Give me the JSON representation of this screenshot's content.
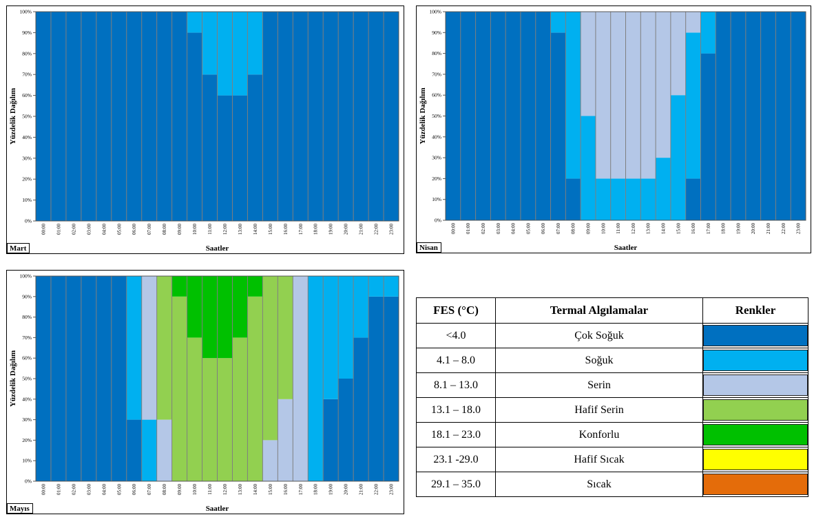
{
  "colors": {
    "cok_soguk": "#0070c0",
    "soguk": "#00b0f0",
    "serin": "#b4c7e7",
    "hafif_serin": "#92d050",
    "konforlu": "#00c000",
    "hafif_sicak": "#ffff00",
    "sicak": "#e46c0a"
  },
  "chart_data": [
    {
      "type": "bar",
      "stacked": true,
      "month": "Mart",
      "xlabel": "Saatler",
      "ylabel": "Yüzdelik Dağılım",
      "ylim": [
        0,
        100
      ],
      "yticks": [
        "0%",
        "10%",
        "20%",
        "30%",
        "40%",
        "50%",
        "60%",
        "70%",
        "80%",
        "90%",
        "100%"
      ],
      "categories": [
        "00:00",
        "01:00",
        "02:00",
        "03:00",
        "04:00",
        "05:00",
        "06:00",
        "07:00",
        "08:00",
        "09:00",
        "10:00",
        "11:00",
        "12:00",
        "13:00",
        "14:00",
        "15:00",
        "16:00",
        "17:00",
        "18:00",
        "19:00",
        "20:00",
        "21:00",
        "22:00",
        "23:00"
      ],
      "series": [
        {
          "key": "cok_soguk",
          "values": [
            100,
            100,
            100,
            100,
            100,
            100,
            100,
            100,
            100,
            100,
            90,
            70,
            60,
            60,
            70,
            100,
            100,
            100,
            100,
            100,
            100,
            100,
            100,
            100
          ]
        },
        {
          "key": "soguk",
          "values": [
            0,
            0,
            0,
            0,
            0,
            0,
            0,
            0,
            0,
            0,
            10,
            30,
            40,
            40,
            30,
            0,
            0,
            0,
            0,
            0,
            0,
            0,
            0,
            0
          ]
        },
        {
          "key": "serin",
          "values": [
            0,
            0,
            0,
            0,
            0,
            0,
            0,
            0,
            0,
            0,
            0,
            0,
            0,
            0,
            0,
            0,
            0,
            0,
            0,
            0,
            0,
            0,
            0,
            0
          ]
        },
        {
          "key": "hafif_serin",
          "values": [
            0,
            0,
            0,
            0,
            0,
            0,
            0,
            0,
            0,
            0,
            0,
            0,
            0,
            0,
            0,
            0,
            0,
            0,
            0,
            0,
            0,
            0,
            0,
            0
          ]
        },
        {
          "key": "konforlu",
          "values": [
            0,
            0,
            0,
            0,
            0,
            0,
            0,
            0,
            0,
            0,
            0,
            0,
            0,
            0,
            0,
            0,
            0,
            0,
            0,
            0,
            0,
            0,
            0,
            0
          ]
        }
      ]
    },
    {
      "type": "bar",
      "stacked": true,
      "month": "Nisan",
      "xlabel": "Saatler",
      "ylabel": "Yüzdelik Dağılım",
      "ylim": [
        0,
        100
      ],
      "yticks": [
        "0%",
        "10%",
        "20%",
        "30%",
        "40%",
        "50%",
        "60%",
        "70%",
        "80%",
        "90%",
        "100%"
      ],
      "categories": [
        "00:00",
        "01:00",
        "02:00",
        "03:00",
        "04:00",
        "05:00",
        "06:00",
        "07:00",
        "08:00",
        "09:00",
        "10:00",
        "11:00",
        "12:00",
        "13:00",
        "14:00",
        "15:00",
        "16:00",
        "17:00",
        "18:00",
        "19:00",
        "20:00",
        "21:00",
        "22:00",
        "23:00"
      ],
      "series": [
        {
          "key": "cok_soguk",
          "values": [
            100,
            100,
            100,
            100,
            100,
            100,
            100,
            90,
            20,
            0,
            0,
            0,
            0,
            0,
            0,
            0,
            20,
            80,
            100,
            100,
            100,
            100,
            100,
            100
          ]
        },
        {
          "key": "soguk",
          "values": [
            0,
            0,
            0,
            0,
            0,
            0,
            0,
            10,
            80,
            50,
            20,
            20,
            20,
            20,
            30,
            60,
            70,
            20,
            0,
            0,
            0,
            0,
            0,
            0
          ]
        },
        {
          "key": "serin",
          "values": [
            0,
            0,
            0,
            0,
            0,
            0,
            0,
            0,
            0,
            50,
            80,
            80,
            80,
            80,
            70,
            40,
            10,
            0,
            0,
            0,
            0,
            0,
            0,
            0
          ]
        },
        {
          "key": "hafif_serin",
          "values": [
            0,
            0,
            0,
            0,
            0,
            0,
            0,
            0,
            0,
            0,
            0,
            0,
            0,
            0,
            0,
            0,
            0,
            0,
            0,
            0,
            0,
            0,
            0,
            0
          ]
        },
        {
          "key": "konforlu",
          "values": [
            0,
            0,
            0,
            0,
            0,
            0,
            0,
            0,
            0,
            0,
            0,
            0,
            0,
            0,
            0,
            0,
            0,
            0,
            0,
            0,
            0,
            0,
            0,
            0
          ]
        }
      ]
    },
    {
      "type": "bar",
      "stacked": true,
      "month": "Mayıs",
      "xlabel": "Saatler",
      "ylabel": "Yüzdelik Dağılım",
      "ylim": [
        0,
        100
      ],
      "yticks": [
        "0%",
        "10%",
        "20%",
        "30%",
        "40%",
        "50%",
        "60%",
        "70%",
        "80%",
        "90%",
        "100%"
      ],
      "categories": [
        "00:00",
        "01:00",
        "02:00",
        "03:00",
        "04:00",
        "05:00",
        "06:00",
        "07:00",
        "08:00",
        "09:00",
        "10:00",
        "11:00",
        "12:00",
        "13:00",
        "14:00",
        "15:00",
        "16:00",
        "17:00",
        "18:00",
        "19:00",
        "20:00",
        "21:00",
        "22:00",
        "23:00"
      ],
      "series": [
        {
          "key": "cok_soguk",
          "values": [
            100,
            100,
            100,
            100,
            100,
            100,
            30,
            0,
            0,
            0,
            0,
            0,
            0,
            0,
            0,
            0,
            0,
            0,
            0,
            40,
            50,
            70,
            90,
            90
          ]
        },
        {
          "key": "soguk",
          "values": [
            0,
            0,
            0,
            0,
            0,
            0,
            70,
            30,
            0,
            0,
            0,
            0,
            0,
            0,
            0,
            0,
            0,
            0,
            100,
            60,
            50,
            30,
            10,
            10
          ]
        },
        {
          "key": "serin",
          "values": [
            0,
            0,
            0,
            0,
            0,
            0,
            0,
            70,
            30,
            0,
            0,
            0,
            0,
            0,
            0,
            20,
            40,
            100,
            0,
            0,
            0,
            0,
            0,
            0
          ]
        },
        {
          "key": "hafif_serin",
          "values": [
            0,
            0,
            0,
            0,
            0,
            0,
            0,
            0,
            70,
            90,
            70,
            60,
            60,
            70,
            90,
            80,
            60,
            0,
            0,
            0,
            0,
            0,
            0,
            0
          ]
        },
        {
          "key": "konforlu",
          "values": [
            0,
            0,
            0,
            0,
            0,
            0,
            0,
            0,
            0,
            10,
            30,
            40,
            40,
            30,
            10,
            0,
            0,
            0,
            0,
            0,
            0,
            0,
            0,
            0
          ]
        }
      ]
    }
  ],
  "legend_table": {
    "headers": [
      "FES (°C)",
      "Termal Algılamalar",
      "Renkler"
    ],
    "rows": [
      {
        "range": "<4.0",
        "label": "Çok Soğuk",
        "color": "#0070c0"
      },
      {
        "range": "4.1 – 8.0",
        "label": "Soğuk",
        "color": "#00b0f0"
      },
      {
        "range": "8.1 – 13.0",
        "label": "Serin",
        "color": "#b4c7e7"
      },
      {
        "range": "13.1 – 18.0",
        "label": "Hafif Serin",
        "color": "#92d050"
      },
      {
        "range": "18.1 – 23.0",
        "label": "Konforlu",
        "color": "#00c000"
      },
      {
        "range": "23.1 -29.0",
        "label": "Hafif Sıcak",
        "color": "#ffff00"
      },
      {
        "range": "29.1 – 35.0",
        "label": "Sıcak",
        "color": "#e46c0a"
      }
    ]
  }
}
